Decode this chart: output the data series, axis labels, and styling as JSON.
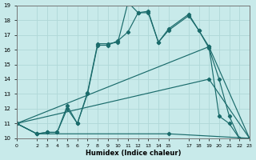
{
  "xlabel": "Humidex (Indice chaleur)",
  "bg_color": "#c8eaea",
  "grid_color": "#b0d8d8",
  "line_color": "#1a6b6b",
  "xlim": [
    0,
    23
  ],
  "ylim": [
    10,
    19
  ],
  "xticks": [
    0,
    2,
    3,
    4,
    5,
    6,
    7,
    8,
    9,
    10,
    11,
    12,
    13,
    14,
    15,
    17,
    18,
    19,
    20,
    21,
    22,
    23
  ],
  "yticks": [
    10,
    11,
    12,
    13,
    14,
    15,
    16,
    17,
    18,
    19
  ],
  "lines": [
    {
      "x": [
        0,
        2,
        3,
        4,
        5,
        6,
        7,
        8,
        9,
        10,
        11,
        12,
        13,
        14,
        15,
        17,
        18,
        19,
        20,
        21,
        22,
        23
      ],
      "y": [
        11,
        10.3,
        10.4,
        10.4,
        12.2,
        11.0,
        13.1,
        16.4,
        16.4,
        16.5,
        19.2,
        18.5,
        18.6,
        16.5,
        17.4,
        18.4,
        17.3,
        16.2,
        11.5,
        11.0,
        10.0,
        10.0
      ]
    },
    {
      "x": [
        0,
        2,
        3,
        4,
        5,
        6,
        7,
        8,
        9,
        10,
        11,
        12,
        13,
        14,
        15,
        17,
        18,
        19,
        20,
        21,
        22,
        23
      ],
      "y": [
        11,
        10.3,
        10.4,
        10.4,
        12.0,
        11.0,
        13.0,
        16.3,
        16.3,
        16.6,
        17.2,
        18.5,
        18.5,
        16.5,
        17.3,
        18.3,
        17.3,
        16.1,
        14.0,
        11.5,
        10.0,
        10.0
      ]
    },
    {
      "x": [
        0,
        19,
        23
      ],
      "y": [
        11,
        16.2,
        10.0
      ]
    },
    {
      "x": [
        0,
        19,
        23
      ],
      "y": [
        11,
        14.0,
        10.0
      ]
    },
    {
      "x": [
        0,
        2,
        15,
        23
      ],
      "y": [
        11,
        10.3,
        10.3,
        10.0
      ]
    }
  ]
}
